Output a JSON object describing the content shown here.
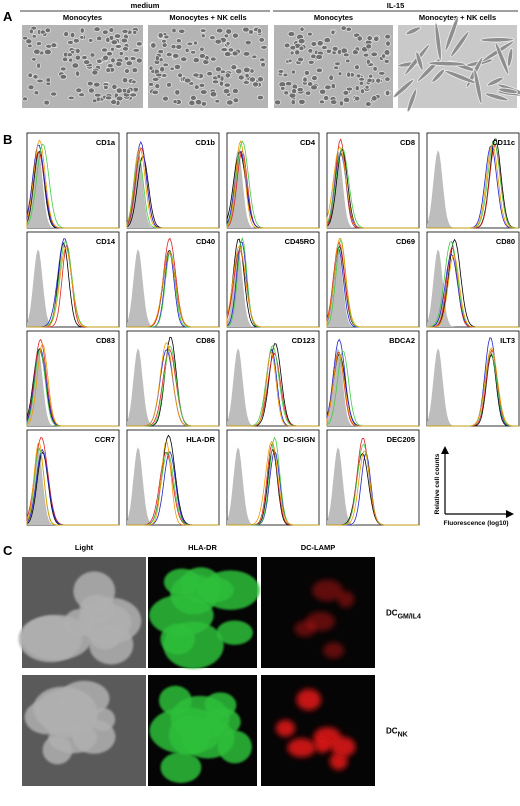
{
  "panel_a": {
    "label": "A",
    "groups": [
      {
        "title": "medium",
        "columns": [
          "Monocytes",
          "Monocytes + NK cells"
        ]
      },
      {
        "title": "IL-15",
        "columns": [
          "Monocytes",
          "Monocytes + NK cells"
        ]
      }
    ]
  },
  "panel_b": {
    "label": "B",
    "markers": [
      "CD1a",
      "CD1b",
      "CD4",
      "CD8",
      "CD11c",
      "CD14",
      "CD40",
      "CD45RO",
      "CD69",
      "CD80",
      "CD83",
      "CD86",
      "CD123",
      "BDCA2",
      "ILT3",
      "CCR7",
      "HLA-DR",
      "DC-SIGN",
      "DEC205"
    ],
    "y_axis_label": "Relative cell counts",
    "x_axis_label": "Fluorescence (log10)"
  },
  "panel_c": {
    "label": "C",
    "columns": [
      "Light",
      "HLA-DR",
      "DC-LAMP"
    ],
    "rows": [
      {
        "main": "DC",
        "sub": "GM/IL4"
      },
      {
        "main": "DC",
        "sub": "NK"
      }
    ]
  }
}
